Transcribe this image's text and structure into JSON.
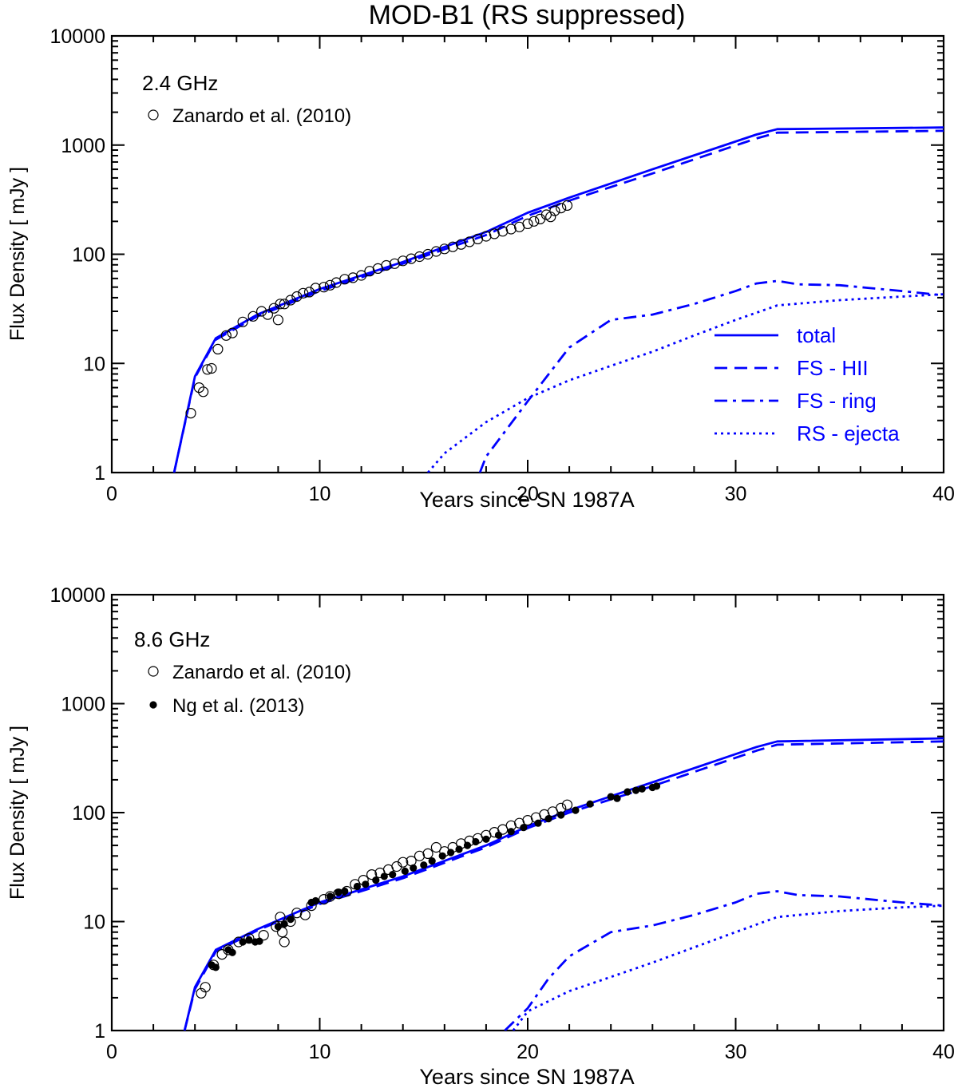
{
  "figure": {
    "title": "MOD-B1 (RS suppressed)"
  },
  "colors": {
    "model": "#0000ff",
    "data": "#000000",
    "axes": "#000000"
  },
  "chart_data": [
    {
      "type": "line",
      "panel_label": "2.4 GHz",
      "xlabel": "Years since SN 1987A",
      "ylabel": "Flux Density [ mJy ]",
      "xlim": [
        0,
        40
      ],
      "ylim": [
        1,
        10000
      ],
      "yscale": "log",
      "xticks": [
        0,
        10,
        20,
        30,
        40
      ],
      "yticks": [
        1,
        10,
        100,
        1000,
        10000
      ],
      "grid": false,
      "model_legend_position": "middle-right",
      "model_legend": [
        {
          "label": "total",
          "series": "total"
        },
        {
          "label": "FS - HII",
          "series": "fs_hii"
        },
        {
          "label": "FS - ring",
          "series": "fs_ring"
        },
        {
          "label": "RS - ejecta",
          "series": "rs_ejecta"
        }
      ],
      "data_legend": [
        {
          "label": "Zanardo et al. (2010)",
          "marker": "open-circle"
        }
      ],
      "series": [
        {
          "key": "total",
          "style": "solid",
          "x": [
            3.0,
            4.0,
            5.0,
            7.0,
            10.0,
            14.0,
            18.0,
            20.0,
            22.0,
            26.0,
            31.0,
            32.0,
            40.0
          ],
          "y": [
            1.0,
            7.6,
            17.0,
            28,
            48,
            85,
            160,
            240,
            330,
            600,
            1250,
            1400,
            1450
          ]
        },
        {
          "key": "fs_hii",
          "style": "dashed",
          "x": [
            3.0,
            4.0,
            5.0,
            7.0,
            10.0,
            14.0,
            18.0,
            20.0,
            22.0,
            26.0,
            31.0,
            32.0,
            40.0
          ],
          "y": [
            1.0,
            7.4,
            16.5,
            27,
            46,
            82,
            150,
            225,
            310,
            550,
            1150,
            1300,
            1350
          ]
        },
        {
          "key": "fs_ring",
          "style": "dashdot",
          "x": [
            17.7,
            18.0,
            20.0,
            22.0,
            24.0,
            26.0,
            28.0,
            30.0,
            31.0,
            32.0,
            33.0,
            35.0,
            38.0,
            40.0
          ],
          "y": [
            1.0,
            1.4,
            4.5,
            14.0,
            25.0,
            28.0,
            35.0,
            46.0,
            54.0,
            57.0,
            53.0,
            52.0,
            46.0,
            42.0
          ]
        },
        {
          "key": "rs_ejecta",
          "style": "dotted",
          "x": [
            15.2,
            16.0,
            18.0,
            20.0,
            22.0,
            24.0,
            26.0,
            28.0,
            30.0,
            32.0,
            35.0,
            38.0,
            40.0
          ],
          "y": [
            1.0,
            1.5,
            2.9,
            4.8,
            7.0,
            9.5,
            12.8,
            18.0,
            25.0,
            34.0,
            38.0,
            41.0,
            43.0
          ]
        }
      ],
      "observations": [
        {
          "source": "Zanardo et al. (2010)",
          "marker": "open-circle",
          "x": [
            3.8,
            4.2,
            4.4,
            4.6,
            4.8,
            5.1,
            5.5,
            5.8,
            6.3,
            6.8,
            7.2,
            7.5,
            7.8,
            8.0,
            8.1,
            8.3,
            8.6,
            8.9,
            9.2,
            9.5,
            9.8,
            10.2,
            10.5,
            10.8,
            11.2,
            11.6,
            12.0,
            12.4,
            12.8,
            13.2,
            13.6,
            14.0,
            14.4,
            14.8,
            15.2,
            15.6,
            16.0,
            16.4,
            16.8,
            17.2,
            17.6,
            18.0,
            18.4,
            18.8,
            19.2,
            19.6,
            20.0,
            20.3,
            20.6,
            20.9,
            21.1,
            21.3,
            21.6,
            21.9
          ],
          "y": [
            3.5,
            6.0,
            5.5,
            8.8,
            9.0,
            13.5,
            18.0,
            19.0,
            24.0,
            27.0,
            30.0,
            28.0,
            32.0,
            25.0,
            35.0,
            35.0,
            38.0,
            41.0,
            44.0,
            45.0,
            49.0,
            50.0,
            52.0,
            55.0,
            59.0,
            61.0,
            64.0,
            70.0,
            74.0,
            79.0,
            82.0,
            87.0,
            91.0,
            95.0,
            100.0,
            106.0,
            112.0,
            117.0,
            123.0,
            130.0,
            138.0,
            146.0,
            154.0,
            162.0,
            170.0,
            178.0,
            190.0,
            200.0,
            210.0,
            230.0,
            220.0,
            250.0,
            265.0,
            280.0
          ]
        }
      ]
    },
    {
      "type": "line",
      "panel_label": "8.6 GHz",
      "xlabel": "Years since SN 1987A",
      "ylabel": "Flux Density [ mJy ]",
      "xlim": [
        0,
        40
      ],
      "ylim": [
        1,
        10000
      ],
      "yscale": "log",
      "xticks": [
        0,
        10,
        20,
        30,
        40
      ],
      "yticks": [
        1,
        10,
        100,
        1000,
        10000
      ],
      "grid": false,
      "data_legend": [
        {
          "label": "Zanardo et al. (2010)",
          "marker": "open-circle"
        },
        {
          "label": "Ng et al. (2013)",
          "marker": "filled-circle"
        }
      ],
      "series": [
        {
          "key": "total",
          "style": "solid",
          "x": [
            3.5,
            4.0,
            5.0,
            7.0,
            10.0,
            14.0,
            18.0,
            20.0,
            22.0,
            26.0,
            31.0,
            32.0,
            40.0
          ],
          "y": [
            1.0,
            2.5,
            5.5,
            8.5,
            15.0,
            26.0,
            50.0,
            75.0,
            105.0,
            190.0,
            400.0,
            450.0,
            480.0
          ]
        },
        {
          "key": "fs_hii",
          "style": "dashed",
          "x": [
            3.5,
            4.0,
            5.0,
            7.0,
            10.0,
            14.0,
            18.0,
            20.0,
            22.0,
            26.0,
            31.0,
            32.0,
            40.0
          ],
          "y": [
            1.0,
            2.4,
            5.3,
            8.3,
            14.5,
            25.0,
            48.0,
            72.0,
            100.0,
            175.0,
            370.0,
            420.0,
            450.0
          ]
        },
        {
          "key": "fs_ring",
          "style": "dashdot",
          "x": [
            18.9,
            20.0,
            21.0,
            22.0,
            24.0,
            26.0,
            28.0,
            30.0,
            31.0,
            32.0,
            33.0,
            35.0,
            38.0,
            40.0
          ],
          "y": [
            1.0,
            1.6,
            3.0,
            4.8,
            8.0,
            9.2,
            11.5,
            15.0,
            18.0,
            19.0,
            17.5,
            17.0,
            15.0,
            14.0
          ]
        },
        {
          "key": "rs_ejecta",
          "style": "dotted",
          "x": [
            19.3,
            20.0,
            22.0,
            24.0,
            26.0,
            28.0,
            30.0,
            32.0,
            35.0,
            38.0,
            40.0
          ],
          "y": [
            1.0,
            1.5,
            2.3,
            3.1,
            4.2,
            5.8,
            8.0,
            11.0,
            12.5,
            13.5,
            14.0
          ]
        }
      ],
      "observations": [
        {
          "source": "Zanardo et al. (2010)",
          "marker": "open-circle",
          "x": [
            4.3,
            4.5,
            4.9,
            5.3,
            5.6,
            6.1,
            6.6,
            7.3,
            7.9,
            8.1,
            8.2,
            8.3,
            8.6,
            8.9,
            9.3,
            9.6,
            10.2,
            10.5,
            10.9,
            11.3,
            11.7,
            12.1,
            12.5,
            12.9,
            13.3,
            13.7,
            14.0,
            14.4,
            14.8,
            15.2,
            15.6,
            16.0,
            16.4,
            16.8,
            17.2,
            17.6,
            18.0,
            18.4,
            18.8,
            19.2,
            19.6,
            20.0,
            20.4,
            20.8,
            21.2,
            21.6,
            21.9
          ],
          "y": [
            2.2,
            2.5,
            4.0,
            5.0,
            5.5,
            6.5,
            7.0,
            7.5,
            9.0,
            11.0,
            8.0,
            6.5,
            10.0,
            12.0,
            11.5,
            14.0,
            16.0,
            17.0,
            18.0,
            19.0,
            22.0,
            24.0,
            27.0,
            28.0,
            30.0,
            32.0,
            35.0,
            36.0,
            40.0,
            42.0,
            48.0,
            44.0,
            48.0,
            52.0,
            55.0,
            58.0,
            62.0,
            66.0,
            70.0,
            76.0,
            80.0,
            85.0,
            90.0,
            96.0,
            102.0,
            110.0,
            118.0
          ]
        },
        {
          "source": "Ng et al. (2013)",
          "marker": "filled-circle",
          "x": [
            4.8,
            5.0,
            5.6,
            5.8,
            6.3,
            6.6,
            6.9,
            7.1,
            8.0,
            8.3,
            8.6,
            9.6,
            9.8,
            10.5,
            10.9,
            11.2,
            11.8,
            12.2,
            12.7,
            13.1,
            13.5,
            14.1,
            14.5,
            15.0,
            15.4,
            15.9,
            16.3,
            16.7,
            17.1,
            17.5,
            18.0,
            18.6,
            19.2,
            19.8,
            20.5,
            21.0,
            21.6,
            22.3,
            23.0,
            24.0,
            24.3,
            24.8,
            25.2,
            25.5,
            26.0,
            26.2
          ],
          "y": [
            4.0,
            3.8,
            5.5,
            5.2,
            6.5,
            6.8,
            6.5,
            6.6,
            9.0,
            9.5,
            10.5,
            15.0,
            15.5,
            17.0,
            18.5,
            19.0,
            21.0,
            22.0,
            24.0,
            26.0,
            27.0,
            29.0,
            31.0,
            33.0,
            36.0,
            40.0,
            43.0,
            46.0,
            50.0,
            54.0,
            57.0,
            62.0,
            67.0,
            73.0,
            80.0,
            88.0,
            95.0,
            105.0,
            120.0,
            140.0,
            135.0,
            155.0,
            160.0,
            165.0,
            170.0,
            175.0
          ]
        }
      ]
    }
  ]
}
